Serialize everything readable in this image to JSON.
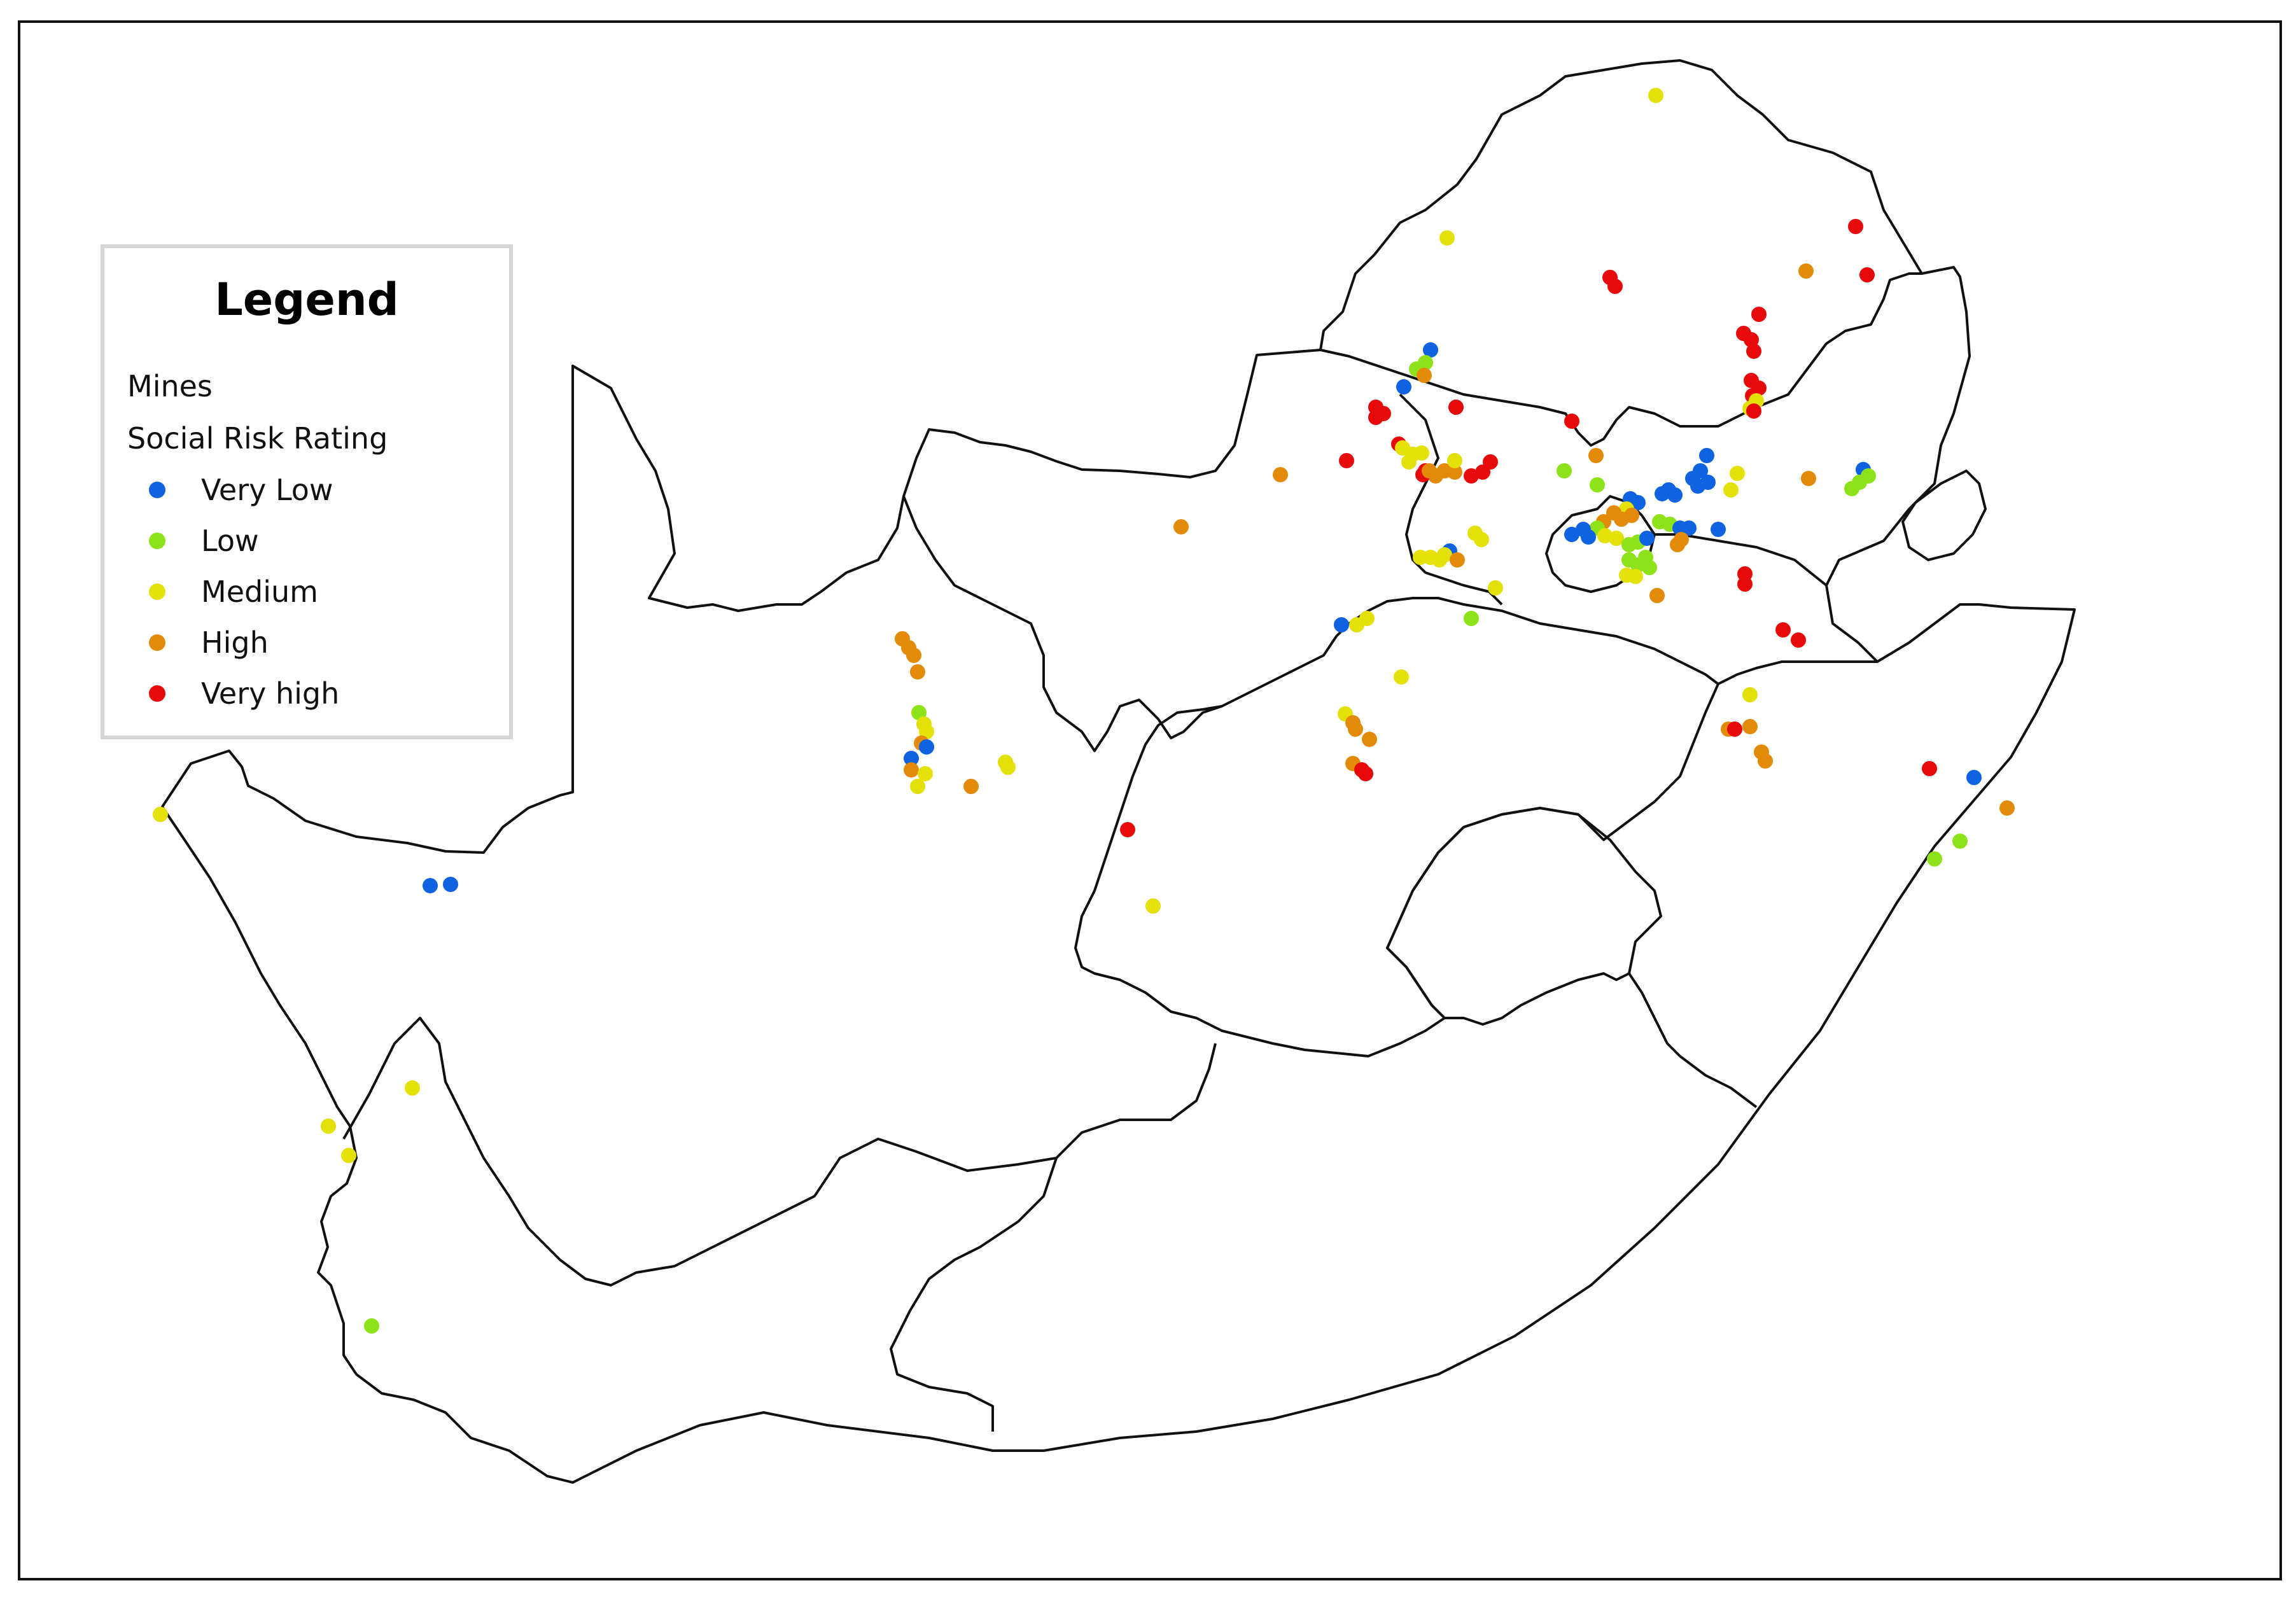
{
  "legend": {
    "title": "Legend",
    "layer_name": "Mines",
    "field_name": "Social Risk Rating",
    "categories": [
      {
        "label": "Very Low",
        "color": "#0f63e0"
      },
      {
        "label": "Low",
        "color": "#8ee21a"
      },
      {
        "label": "Medium",
        "color": "#e3e00a"
      },
      {
        "label": "High",
        "color": "#e38a0a"
      },
      {
        "label": "Very high",
        "color": "#e60a0a"
      }
    ]
  }
}
